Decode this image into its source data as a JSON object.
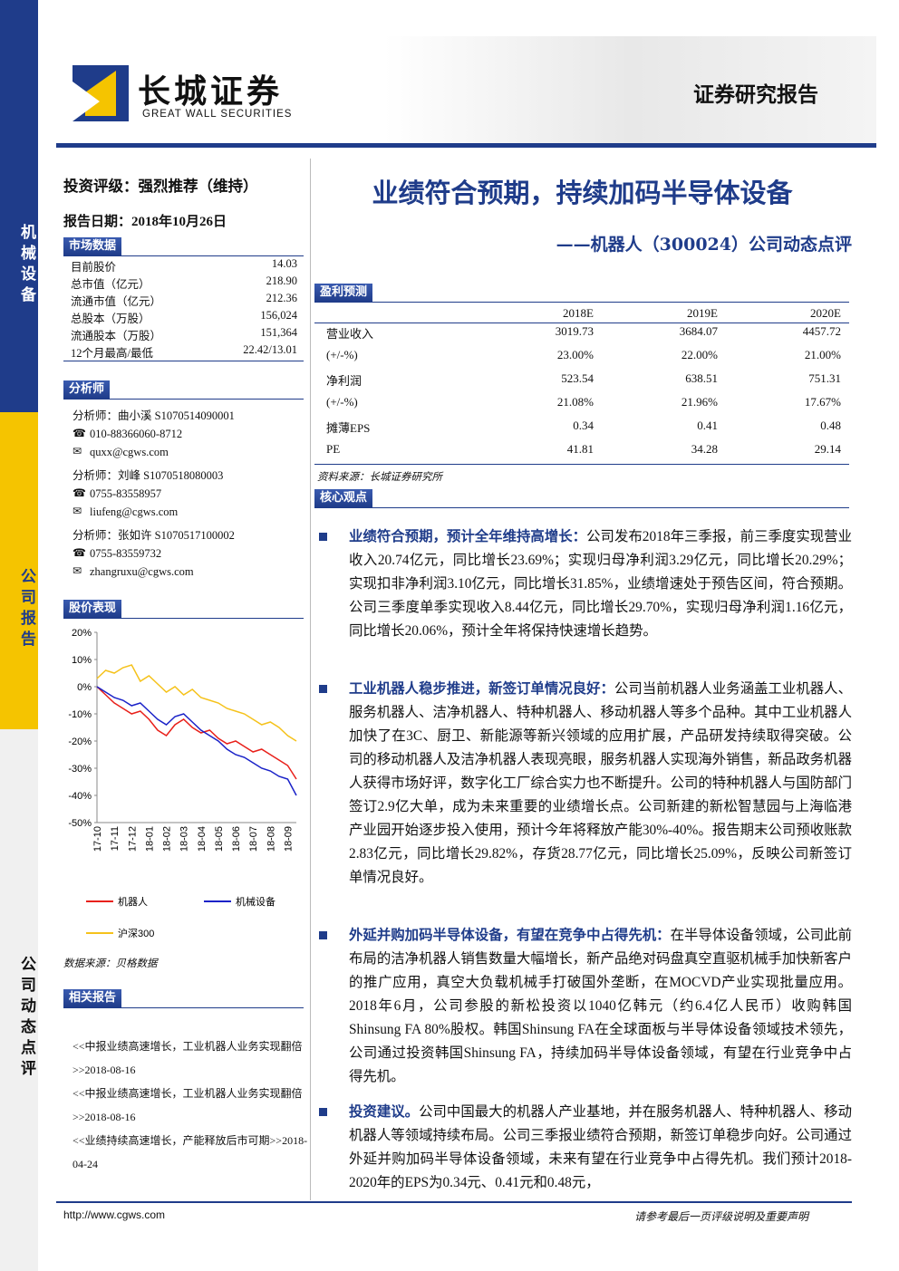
{
  "header": {
    "logo_name": "长城证券",
    "logo_en": "GREAT WALL SECURITIES",
    "doc_type": "证券研究报告"
  },
  "sidebar": [
    "机械设备",
    "公司报告",
    "公司动态点评"
  ],
  "rating": "投资评级：强烈推荐（维持）",
  "report_date": "报告日期：2018年10月26日",
  "title": "业绩符合预期，持续加码半导体设备",
  "subtitle": "——机器人（300024）公司动态点评",
  "market_data": {
    "heading": "市场数据",
    "rows": [
      [
        "目前股价",
        "14.03"
      ],
      [
        "总市值（亿元）",
        "218.90"
      ],
      [
        "流通市值（亿元）",
        "212.36"
      ],
      [
        "总股本（万股）",
        "156,024"
      ],
      [
        "流通股本（万股）",
        "151,364"
      ],
      [
        "12个月最高/最低",
        "22.42/13.01"
      ]
    ]
  },
  "analysts": {
    "heading": "分析师",
    "people": [
      {
        "name": "分析师：曲小溪 S1070514090001",
        "phone": "010-88366060-8712",
        "email": "quxx@cgws.com"
      },
      {
        "name": "分析师：刘峰 S1070518080003",
        "phone": "0755-83558957",
        "email": "liufeng@cgws.com"
      },
      {
        "name": "分析师：张如许 S1070517100002",
        "phone": "0755-83559732",
        "email": "zhangruxu@cgws.com"
      }
    ]
  },
  "price_heading": "股价表现",
  "chart_source": "数据来源：贝格数据",
  "chart_data": {
    "type": "line",
    "categories": [
      "17-10",
      null,
      "17-11",
      null,
      "17-12",
      null,
      "18-01",
      null,
      "18-02",
      null,
      "18-03",
      null,
      "18-04",
      null,
      "18-05",
      null,
      "18-06",
      null,
      "18-07",
      null,
      "18-08",
      null,
      "18-09",
      null
    ],
    "series": [
      {
        "name": "机器人",
        "color": "#e8201a",
        "values": [
          0,
          -3,
          -6,
          -8,
          -10,
          -9,
          -12,
          -16,
          -18,
          -14,
          -12,
          -15,
          -17,
          -16,
          -19,
          -21,
          -20,
          -22,
          -24,
          -23,
          -25,
          -27,
          -29,
          -34
        ]
      },
      {
        "name": "机械设备",
        "color": "#1a22c8",
        "values": [
          0,
          -2,
          -4,
          -5,
          -7,
          -6,
          -9,
          -12,
          -14,
          -11,
          -10,
          -13,
          -16,
          -18,
          -20,
          -23,
          -25,
          -26,
          -28,
          -30,
          -31,
          -33,
          -34,
          -40
        ]
      },
      {
        "name": "沪深300",
        "color": "#f5c21b",
        "values": [
          3,
          6,
          5,
          7,
          8,
          2,
          4,
          1,
          -2,
          0,
          -3,
          -1,
          -4,
          -5,
          -6,
          -8,
          -9,
          -10,
          -12,
          -14,
          -13,
          -15,
          -18,
          -20
        ]
      }
    ],
    "ylim": [
      -50,
      20
    ],
    "yticks": [
      {
        "value": -50,
        "label": "-50%"
      },
      {
        "value": -40,
        "label": "-40%"
      },
      {
        "value": -30,
        "label": "-30%"
      },
      {
        "value": -20,
        "label": "-20%"
      },
      {
        "value": -10,
        "label": "-10%"
      },
      {
        "value": 0,
        "label": "0%"
      },
      {
        "value": 10,
        "label": "10%"
      },
      {
        "value": 20,
        "label": "20%"
      }
    ]
  },
  "related": {
    "heading": "相关报告",
    "items": [
      {
        "title": "<<中报业绩高速增长，工业机器人业务实现翻倍>>",
        "date": "2018-08-16"
      },
      {
        "title": "<<中报业绩高速增长，工业机器人业务实现翻倍>>",
        "date": "2018-08-16"
      },
      {
        "title": "<<业绩持续高速增长，产能释放后市可期>>",
        "date": "2018-04-24"
      }
    ]
  },
  "forecast": {
    "heading": "盈利预测",
    "columns": [
      "2018E",
      "2019E",
      "2020E"
    ],
    "rows": [
      [
        "营业收入",
        "3019.73",
        "3684.07",
        "4457.72"
      ],
      [
        "(+/-%)",
        "23.00%",
        "22.00%",
        "21.00%"
      ],
      [
        "净利润",
        "523.54",
        "638.51",
        "751.31"
      ],
      [
        "(+/-%)",
        "21.08%",
        "21.96%",
        "17.67%"
      ],
      [
        "摊薄EPS",
        "0.34",
        "0.41",
        "0.48"
      ],
      [
        "PE",
        "41.81",
        "34.28",
        "29.14"
      ]
    ],
    "source": "资料来源：长城证券研究所"
  },
  "views": {
    "heading": "核心观点",
    "paragraphs": [
      {
        "lead": "业绩符合预期，预计全年维持高增长：",
        "text": "公司发布2018年三季报，前三季度实现营业收入20.74亿元，同比增长23.69%；实现归母净利润3.29亿元，同比增长20.29%；实现扣非净利润3.10亿元，同比增长31.85%，业绩增速处于预告区间，符合预期。公司三季度单季实现收入8.44亿元，同比增长29.70%，实现归母净利润1.16亿元，同比增长20.06%，预计全年将保持快速增长趋势。"
      },
      {
        "lead": "工业机器人稳步推进，新签订单情况良好：",
        "text": "公司当前机器人业务涵盖工业机器人、服务机器人、洁净机器人、特种机器人、移动机器人等多个品种。其中工业机器人加快了在3C、厨卫、新能源等新兴领域的应用扩展，产品研发持续取得突破。公司的移动机器人及洁净机器人表现亮眼，服务机器人实现海外销售，新品政务机器人获得市场好评，数字化工厂综合实力也不断提升。公司的特种机器人与国防部门签订2.9亿大单，成为未来重要的业绩增长点。公司新建的新松智慧园与上海临港产业园开始逐步投入使用，预计今年将释放产能30%-40%。报告期末公司预收账款2.83亿元，同比增长29.82%，存货28.77亿元，同比增长25.09%，反映公司新签订单情况良好。"
      },
      {
        "lead": "外延并购加码半导体设备，有望在竞争中占得先机：",
        "text": "在半导体设备领域，公司此前布局的洁净机器人销售数量大幅增长，新产品绝对码盘真空直驱机械手加快新客户的推广应用，真空大负载机械手打破国外垄断，在MOCVD产业实现批量应用。2018年6月，公司参股的新松投资以1040亿韩元（约6.4亿人民币）收购韩国Shinsung FA 80%股权。韩国Shinsung FA在全球面板与半导体设备领域技术领先，公司通过投资韩国Shinsung FA，持续加码半导体设备领域，有望在行业竞争中占得先机。"
      },
      {
        "lead": "投资建议。",
        "text": "公司中国最大的机器人产业基地，并在服务机器人、特种机器人、移动机器人等领域持续布局。公司三季报业绩符合预期，新签订单稳步向好。公司通过外延并购加码半导体设备领域，未来有望在行业竞争中占得先机。我们预计2018-2020年的EPS为0.34元、0.41元和0.48元，"
      }
    ]
  },
  "footer": {
    "url": "http://www.cgws.com",
    "note": "请参考最后一页评级说明及重要声明"
  }
}
